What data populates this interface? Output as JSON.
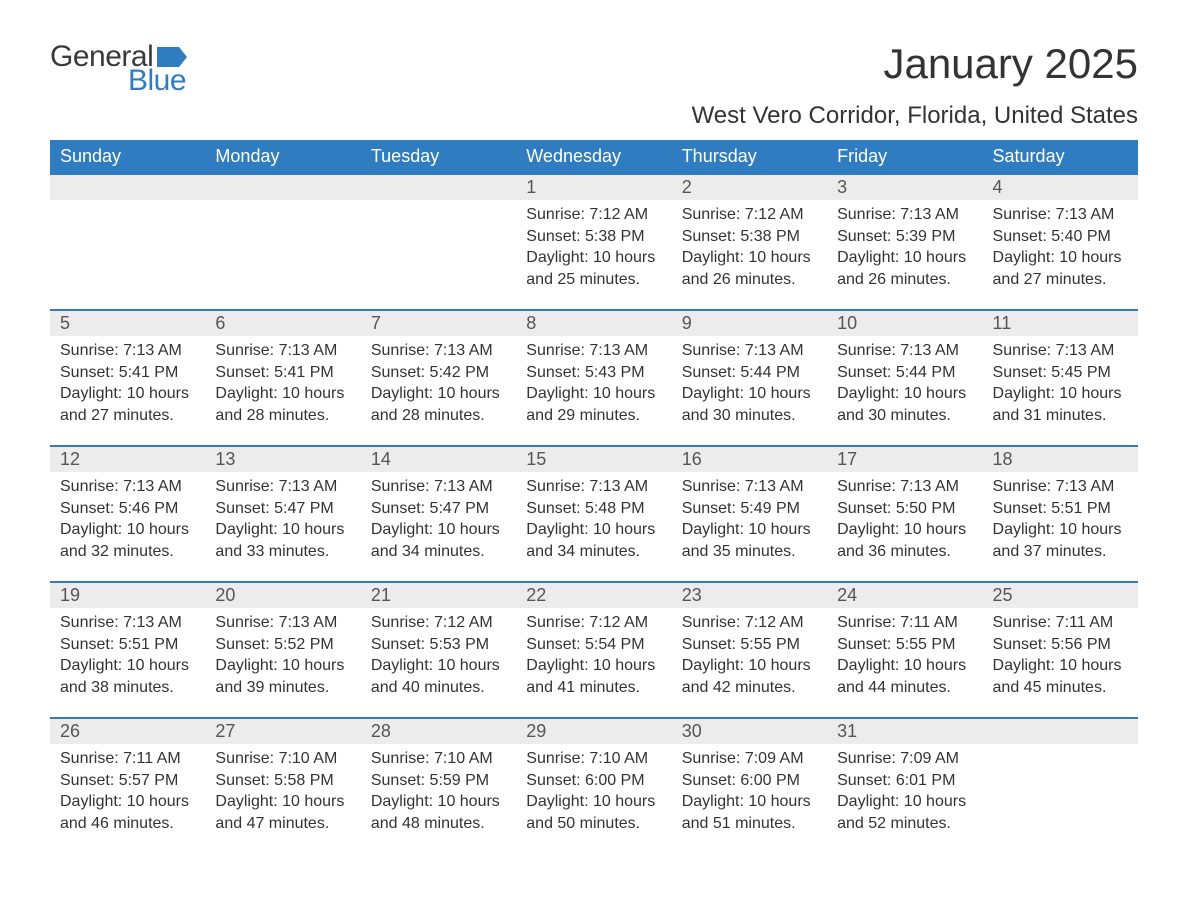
{
  "logo": {
    "line1": "General",
    "line2": "Blue",
    "flag_color": "#2f7dc0"
  },
  "title": "January 2025",
  "subtitle": "West Vero Corridor, Florida, United States",
  "colors": {
    "header_bg": "#2f7dc0",
    "header_text": "#ffffff",
    "daynum_bg": "#ececec",
    "row_border": "#2f7dc0",
    "text": "#333333"
  },
  "day_labels": [
    "Sunday",
    "Monday",
    "Tuesday",
    "Wednesday",
    "Thursday",
    "Friday",
    "Saturday"
  ],
  "weeks": [
    [
      null,
      null,
      null,
      {
        "n": "1",
        "sunrise": "7:12 AM",
        "sunset": "5:38 PM",
        "daylight": "10 hours and 25 minutes."
      },
      {
        "n": "2",
        "sunrise": "7:12 AM",
        "sunset": "5:38 PM",
        "daylight": "10 hours and 26 minutes."
      },
      {
        "n": "3",
        "sunrise": "7:13 AM",
        "sunset": "5:39 PM",
        "daylight": "10 hours and 26 minutes."
      },
      {
        "n": "4",
        "sunrise": "7:13 AM",
        "sunset": "5:40 PM",
        "daylight": "10 hours and 27 minutes."
      }
    ],
    [
      {
        "n": "5",
        "sunrise": "7:13 AM",
        "sunset": "5:41 PM",
        "daylight": "10 hours and 27 minutes."
      },
      {
        "n": "6",
        "sunrise": "7:13 AM",
        "sunset": "5:41 PM",
        "daylight": "10 hours and 28 minutes."
      },
      {
        "n": "7",
        "sunrise": "7:13 AM",
        "sunset": "5:42 PM",
        "daylight": "10 hours and 28 minutes."
      },
      {
        "n": "8",
        "sunrise": "7:13 AM",
        "sunset": "5:43 PM",
        "daylight": "10 hours and 29 minutes."
      },
      {
        "n": "9",
        "sunrise": "7:13 AM",
        "sunset": "5:44 PM",
        "daylight": "10 hours and 30 minutes."
      },
      {
        "n": "10",
        "sunrise": "7:13 AM",
        "sunset": "5:44 PM",
        "daylight": "10 hours and 30 minutes."
      },
      {
        "n": "11",
        "sunrise": "7:13 AM",
        "sunset": "5:45 PM",
        "daylight": "10 hours and 31 minutes."
      }
    ],
    [
      {
        "n": "12",
        "sunrise": "7:13 AM",
        "sunset": "5:46 PM",
        "daylight": "10 hours and 32 minutes."
      },
      {
        "n": "13",
        "sunrise": "7:13 AM",
        "sunset": "5:47 PM",
        "daylight": "10 hours and 33 minutes."
      },
      {
        "n": "14",
        "sunrise": "7:13 AM",
        "sunset": "5:47 PM",
        "daylight": "10 hours and 34 minutes."
      },
      {
        "n": "15",
        "sunrise": "7:13 AM",
        "sunset": "5:48 PM",
        "daylight": "10 hours and 34 minutes."
      },
      {
        "n": "16",
        "sunrise": "7:13 AM",
        "sunset": "5:49 PM",
        "daylight": "10 hours and 35 minutes."
      },
      {
        "n": "17",
        "sunrise": "7:13 AM",
        "sunset": "5:50 PM",
        "daylight": "10 hours and 36 minutes."
      },
      {
        "n": "18",
        "sunrise": "7:13 AM",
        "sunset": "5:51 PM",
        "daylight": "10 hours and 37 minutes."
      }
    ],
    [
      {
        "n": "19",
        "sunrise": "7:13 AM",
        "sunset": "5:51 PM",
        "daylight": "10 hours and 38 minutes."
      },
      {
        "n": "20",
        "sunrise": "7:13 AM",
        "sunset": "5:52 PM",
        "daylight": "10 hours and 39 minutes."
      },
      {
        "n": "21",
        "sunrise": "7:12 AM",
        "sunset": "5:53 PM",
        "daylight": "10 hours and 40 minutes."
      },
      {
        "n": "22",
        "sunrise": "7:12 AM",
        "sunset": "5:54 PM",
        "daylight": "10 hours and 41 minutes."
      },
      {
        "n": "23",
        "sunrise": "7:12 AM",
        "sunset": "5:55 PM",
        "daylight": "10 hours and 42 minutes."
      },
      {
        "n": "24",
        "sunrise": "7:11 AM",
        "sunset": "5:55 PM",
        "daylight": "10 hours and 44 minutes."
      },
      {
        "n": "25",
        "sunrise": "7:11 AM",
        "sunset": "5:56 PM",
        "daylight": "10 hours and 45 minutes."
      }
    ],
    [
      {
        "n": "26",
        "sunrise": "7:11 AM",
        "sunset": "5:57 PM",
        "daylight": "10 hours and 46 minutes."
      },
      {
        "n": "27",
        "sunrise": "7:10 AM",
        "sunset": "5:58 PM",
        "daylight": "10 hours and 47 minutes."
      },
      {
        "n": "28",
        "sunrise": "7:10 AM",
        "sunset": "5:59 PM",
        "daylight": "10 hours and 48 minutes."
      },
      {
        "n": "29",
        "sunrise": "7:10 AM",
        "sunset": "6:00 PM",
        "daylight": "10 hours and 50 minutes."
      },
      {
        "n": "30",
        "sunrise": "7:09 AM",
        "sunset": "6:00 PM",
        "daylight": "10 hours and 51 minutes."
      },
      {
        "n": "31",
        "sunrise": "7:09 AM",
        "sunset": "6:01 PM",
        "daylight": "10 hours and 52 minutes."
      },
      null
    ]
  ],
  "labels": {
    "sunrise": "Sunrise: ",
    "sunset": "Sunset: ",
    "daylight": "Daylight: "
  }
}
